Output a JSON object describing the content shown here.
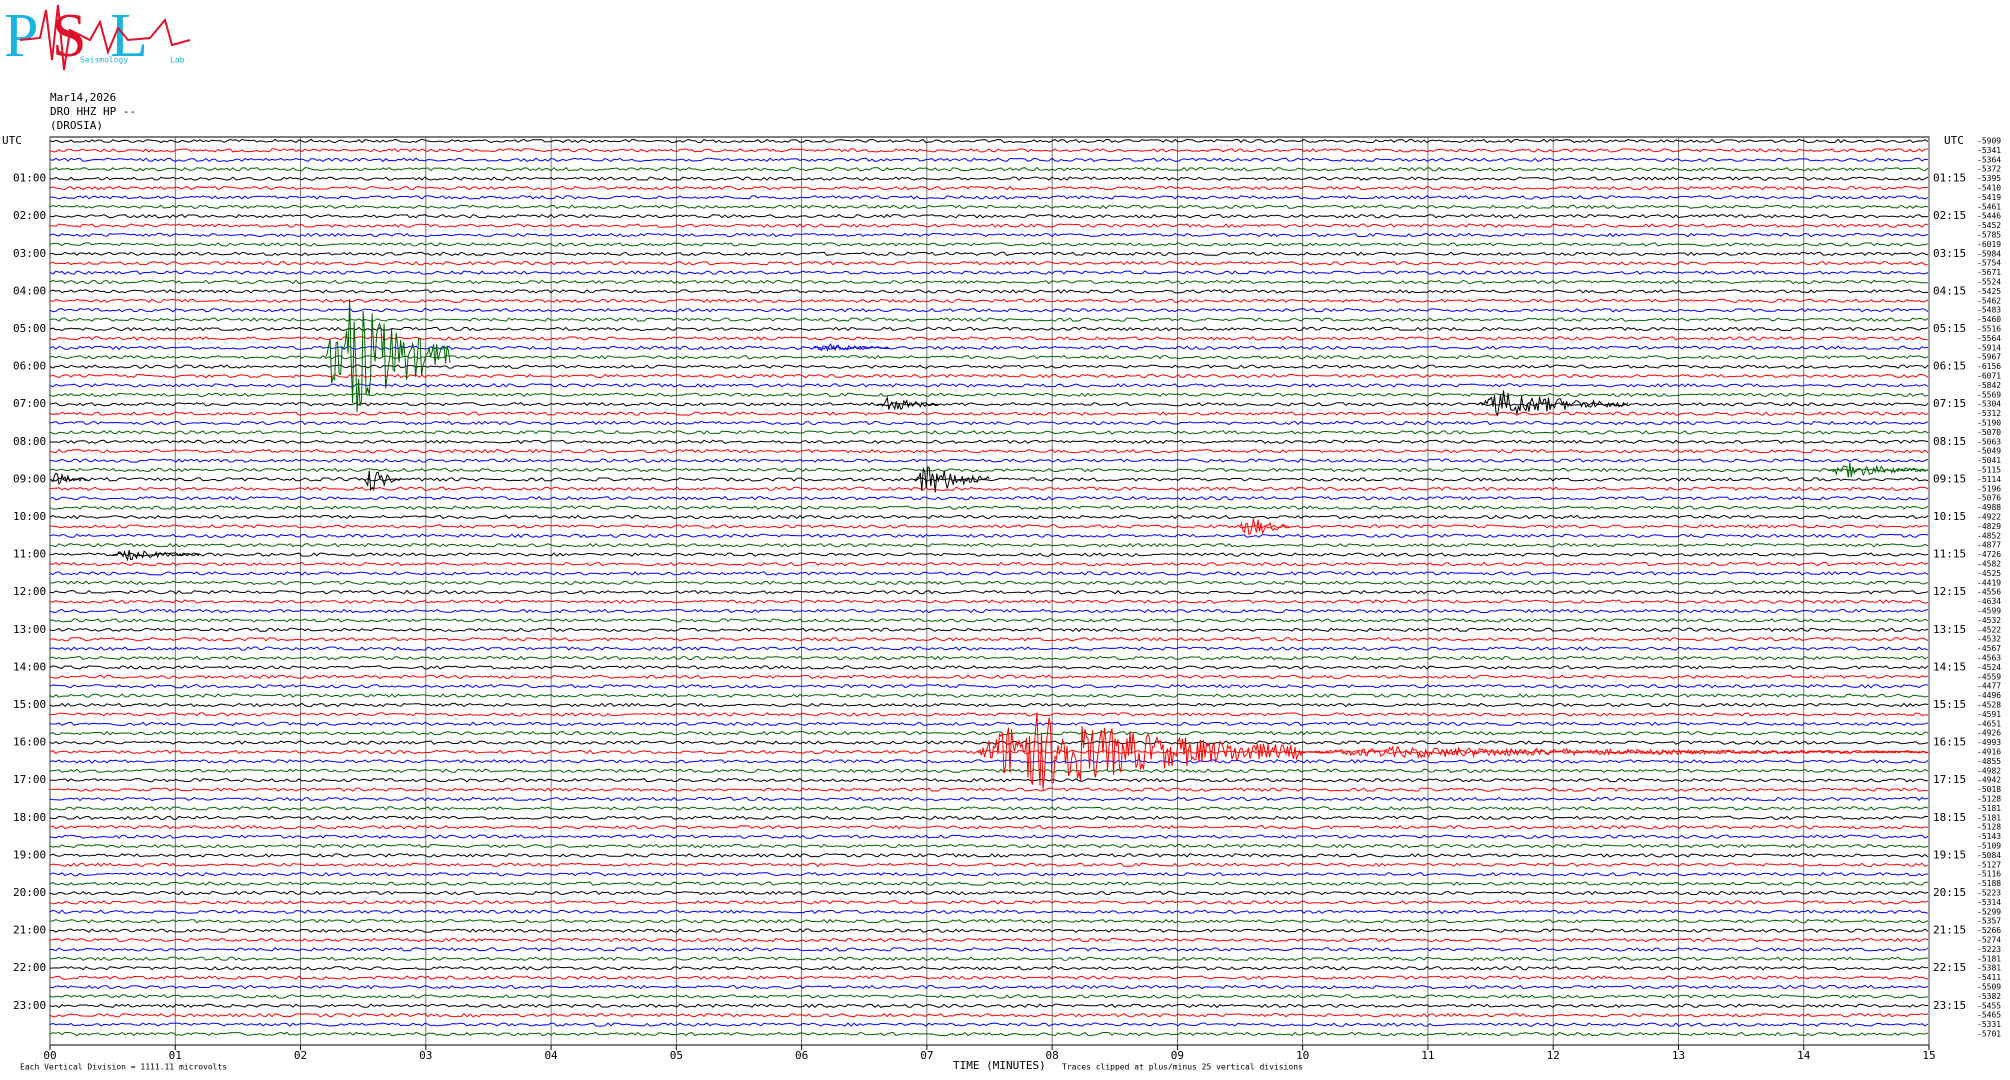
{
  "chart_data": {
    "type": "helicorder",
    "logo": {
      "letters": [
        "P",
        "S",
        "L"
      ],
      "words": [
        "Seismology",
        "Lab"
      ]
    },
    "date": "Mar14,2026",
    "station": "DRO HHZ HP --",
    "location": "(DROSIA)",
    "left_axis_title": "UTC",
    "right_axis_title": "UTC",
    "left_labels": [
      "01:00",
      "02:00",
      "03:00",
      "04:00",
      "05:00",
      "06:00",
      "07:00",
      "08:00",
      "09:00",
      "10:00",
      "11:00",
      "12:00",
      "13:00",
      "14:00",
      "15:00",
      "16:00",
      "17:00",
      "18:00",
      "19:00",
      "20:00",
      "21:00",
      "22:00",
      "23:00"
    ],
    "right_labels": [
      "01:15",
      "02:15",
      "03:15",
      "04:15",
      "05:15",
      "06:15",
      "07:15",
      "08:15",
      "09:15",
      "10:15",
      "11:15",
      "12:15",
      "13:15",
      "14:15",
      "15:15",
      "16:15",
      "17:15",
      "18:15",
      "19:15",
      "20:15",
      "21:15",
      "22:15",
      "23:15"
    ],
    "offsets": [
      -5909,
      -5341,
      -5364,
      -5372,
      -5395,
      -5410,
      -5419,
      -5461,
      -5446,
      -5452,
      -5785,
      -6019,
      -5984,
      -5754,
      -5671,
      -5524,
      -5425,
      -5462,
      -5483,
      -5460,
      -5516,
      -5564,
      -5914,
      -5967,
      -6156,
      -6071,
      -5842,
      -5569,
      -5304,
      -5312,
      -5190,
      -5070,
      -5063,
      -5049,
      -5041,
      -5115,
      -5114,
      -5196,
      -5076,
      -4988,
      -4922,
      -4829,
      -4852,
      -4877,
      -4726,
      -4582,
      -4525,
      -4419,
      -4556,
      -4634,
      -4599,
      -4532,
      -4522,
      -4532,
      -4567,
      -4563,
      -4524,
      -4559,
      -4477,
      -4496,
      -4528,
      -4591,
      -4651,
      -4926,
      -4993,
      -4916,
      -4855,
      -4982,
      -4942,
      -5018,
      -5128,
      -5181,
      -5181,
      -5128,
      -5143,
      -5109,
      -5084,
      -5127,
      -5116,
      -5188,
      -5223,
      -5314,
      -5299,
      -5357,
      -5266,
      -5274,
      -5223,
      -5181,
      -5381,
      -5411,
      -5509,
      -5382,
      -5455,
      -5465,
      -5331,
      -5701
    ],
    "trace_colors": [
      "#000000",
      "#ff0000",
      "#0000ff",
      "#006400"
    ],
    "xlim": [
      0,
      15
    ],
    "xticks": [
      {
        "value": 0,
        "label": "00"
      },
      {
        "value": 1,
        "label": "01"
      },
      {
        "value": 2,
        "label": "02"
      },
      {
        "value": 3,
        "label": "03"
      },
      {
        "value": 4,
        "label": "04"
      },
      {
        "value": 5,
        "label": "05"
      },
      {
        "value": 6,
        "label": "06"
      },
      {
        "value": 7,
        "label": "07"
      },
      {
        "value": 8,
        "label": "08"
      },
      {
        "value": 9,
        "label": "09"
      },
      {
        "value": 10,
        "label": "10"
      },
      {
        "value": 11,
        "label": "11"
      },
      {
        "value": 12,
        "label": "12"
      },
      {
        "value": 13,
        "label": "13"
      },
      {
        "value": 14,
        "label": "14"
      },
      {
        "value": 15,
        "label": "15"
      }
    ],
    "xlabel": "TIME (MINUTES)",
    "clip_note": "Traces clipped at plus/minus 25 vertical divisions",
    "scale_note": "Each Vertical Division = 1111.11 microvolts",
    "events": [
      {
        "row": 23,
        "start": 2.2,
        "end": 3.2,
        "amplitude": 100
      },
      {
        "row": 22,
        "start": 6.1,
        "end": 6.7,
        "amplitude": 6
      },
      {
        "row": 28,
        "start": 11.4,
        "end": 12.6,
        "amplitude": 20
      },
      {
        "row": 28,
        "start": 6.6,
        "end": 7.1,
        "amplitude": 12
      },
      {
        "row": 35,
        "start": 14.2,
        "end": 15,
        "amplitude": 12
      },
      {
        "row": 36,
        "start": 6.9,
        "end": 7.5,
        "amplitude": 25
      },
      {
        "row": 36,
        "start": 2.5,
        "end": 2.8,
        "amplitude": 20
      },
      {
        "row": 36,
        "start": 0,
        "end": 0.3,
        "amplitude": 10
      },
      {
        "row": 41,
        "start": 9.5,
        "end": 9.9,
        "amplitude": 18
      },
      {
        "row": 44,
        "start": 0.5,
        "end": 1.2,
        "amplitude": 8
      },
      {
        "row": 65,
        "start": 7.4,
        "end": 10,
        "amplitude": 60
      },
      {
        "row": 65,
        "start": 10,
        "end": 15,
        "amplitude": 8
      }
    ]
  }
}
